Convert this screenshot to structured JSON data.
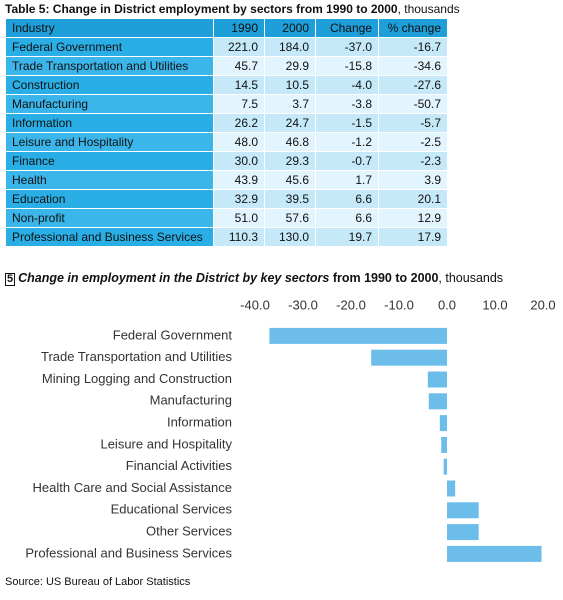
{
  "table": {
    "title": "Table 5: Change in District employment by sectors from 1990 to 2000",
    "title_unit": ", thousands",
    "header": [
      "Industry",
      "1990",
      "2000",
      "Change",
      "% change"
    ],
    "rows": [
      [
        "Federal Government",
        "221.0",
        "184.0",
        "-37.0",
        "-16.7"
      ],
      [
        "Trade Transportation and Utilities",
        "45.7",
        "29.9",
        "-15.8",
        "-34.6"
      ],
      [
        "Construction",
        "14.5",
        "10.5",
        "-4.0",
        "-27.6"
      ],
      [
        "Manufacturing",
        "7.5",
        "3.7",
        "-3.8",
        "-50.7"
      ],
      [
        "Information",
        "26.2",
        "24.7",
        "-1.5",
        "-5.7"
      ],
      [
        "Leisure and Hospitality",
        "48.0",
        "46.8",
        "-1.2",
        "-2.5"
      ],
      [
        "Finance",
        "30.0",
        "29.3",
        "-0.7",
        "-2.3"
      ],
      [
        "Health",
        "43.9",
        "45.6",
        "1.7",
        "3.9"
      ],
      [
        "Education",
        "32.9",
        "39.5",
        "6.6",
        "20.1"
      ],
      [
        "Non-profit",
        "51.0",
        "57.6",
        "6.6",
        "12.9"
      ],
      [
        "Professional and Business Services",
        "110.3",
        "130.0",
        "19.7",
        "17.9"
      ]
    ]
  },
  "chart_data": {
    "type": "bar",
    "orientation": "horizontal",
    "figure_number": "5",
    "title": "Change in employment in the District by key sectors",
    "title_period": "from 1990 to 2000",
    "title_unit": ", thousands",
    "categories": [
      "Federal Government",
      "Trade Transportation and Utilities",
      "Mining Logging and Construction",
      "Manufacturing",
      "Information",
      "Leisure and Hospitality",
      "Financial Activities",
      "Health Care and Social Assistance",
      "Educational Services",
      "Other Services",
      "Professional and Business Services"
    ],
    "values": [
      -37.0,
      -15.8,
      -4.0,
      -3.8,
      -1.5,
      -1.2,
      -0.7,
      1.7,
      6.6,
      6.6,
      19.7
    ],
    "color": "#6cbde9",
    "xlim": [
      -40,
      20
    ],
    "xticks": [
      {
        "value": -40,
        "label": "-40.0"
      },
      {
        "value": -30,
        "label": "-30.0"
      },
      {
        "value": -20,
        "label": "-20.0"
      },
      {
        "value": -10,
        "label": "-10.0"
      },
      {
        "value": 0,
        "label": "0.0"
      },
      {
        "value": 10,
        "label": "10.0"
      },
      {
        "value": 20,
        "label": "20.0"
      }
    ]
  },
  "source": "Source: US Bureau of Labor Statistics"
}
